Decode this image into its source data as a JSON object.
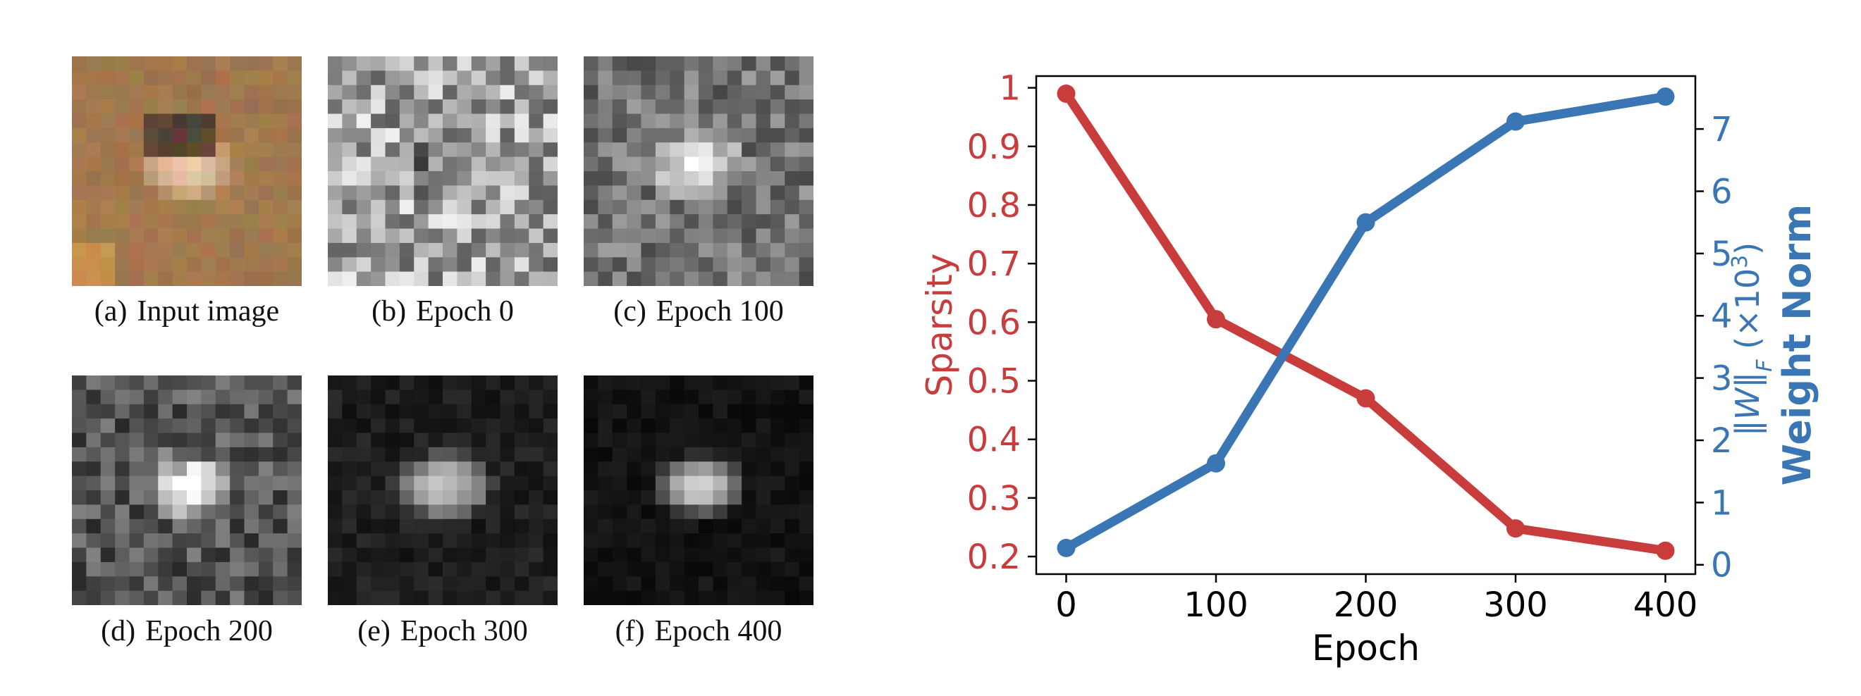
{
  "figure": {
    "panels": [
      {
        "label": "(a)",
        "caption": "Input image",
        "kind": "input-image"
      },
      {
        "label": "(b)",
        "caption": "Epoch 0",
        "kind": "noise-map"
      },
      {
        "label": "(c)",
        "caption": "Epoch 100",
        "kind": "reconstruction"
      },
      {
        "label": "(d)",
        "caption": "Epoch 200",
        "kind": "reconstruction"
      },
      {
        "label": "(e)",
        "caption": "Epoch 300",
        "kind": "reconstruction"
      },
      {
        "label": "(f)",
        "caption": "Epoch 400",
        "kind": "reconstruction"
      }
    ]
  },
  "colors": {
    "sparsity": "#c83c3c",
    "weight_norm": "#3a76b4",
    "axis": "#000000"
  },
  "chart_data": {
    "type": "line",
    "xlabel": "Epoch",
    "x": [
      0,
      100,
      200,
      300,
      400
    ],
    "xticks": [
      "0",
      "100",
      "200",
      "300",
      "400"
    ],
    "xlim": [
      -20,
      420
    ],
    "grid": false,
    "series": [
      {
        "name": "Sparsity",
        "axis": "left",
        "values": [
          0.99,
          0.605,
          0.47,
          0.248,
          0.21
        ]
      },
      {
        "name": "Weight Norm",
        "axis": "right",
        "values": [
          0.27,
          1.63,
          5.5,
          7.12,
          7.52
        ]
      }
    ],
    "left_axis": {
      "label": "Sparsity",
      "ticks": [
        "0.2",
        "0.3",
        "0.4",
        "0.5",
        "0.6",
        "0.7",
        "0.8",
        "0.9",
        "1"
      ],
      "tick_values": [
        0.2,
        0.3,
        0.4,
        0.5,
        0.6,
        0.7,
        0.8,
        0.9,
        1.0
      ],
      "ylim": [
        0.17,
        1.02
      ]
    },
    "right_axis": {
      "label_bold": "Weight Norm",
      "label_math": "‖W‖",
      "label_sub": "F",
      "label_unit": "(×10",
      "label_sup": "3",
      "label_close": ")",
      "ticks": [
        "0",
        "1",
        "2",
        "3",
        "4",
        "5",
        "6",
        "7"
      ],
      "tick_values": [
        0,
        1,
        2,
        3,
        4,
        5,
        6,
        7
      ],
      "ylim": [
        -0.15,
        7.85
      ]
    }
  }
}
